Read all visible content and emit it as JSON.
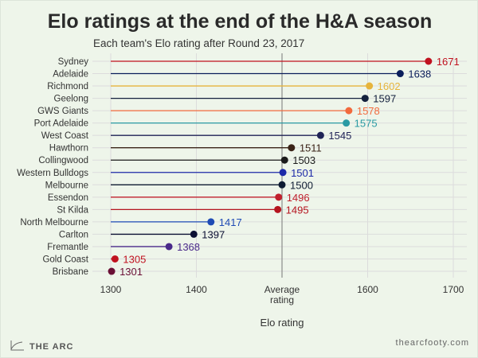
{
  "chart_data": {
    "type": "lollipop",
    "title": "Elo ratings at the end of the H&A season",
    "subtitle": "Each team's Elo rating after Round 23, 2017",
    "xlabel": "Elo rating",
    "xlim": [
      1290,
      1715
    ],
    "xticks": [
      {
        "value": 1300,
        "label": "1300"
      },
      {
        "value": 1400,
        "label": "1400"
      },
      {
        "value": 1500,
        "label": "Average rating"
      },
      {
        "value": 1600,
        "label": "1600"
      },
      {
        "value": 1700,
        "label": "1700"
      }
    ],
    "baseline": 1300,
    "reference_line": 1500,
    "grid": true,
    "teams": [
      {
        "name": "Sydney",
        "value": 1671,
        "color": "#c0111f"
      },
      {
        "name": "Adelaide",
        "value": 1638,
        "color": "#0b1e5b"
      },
      {
        "name": "Richmond",
        "value": 1602,
        "color": "#e6b43c"
      },
      {
        "name": "Geelong",
        "value": 1597,
        "color": "#14213d"
      },
      {
        "name": "GWS Giants",
        "value": 1578,
        "color": "#f26a3d"
      },
      {
        "name": "Port Adelaide",
        "value": 1575,
        "color": "#2a9aa3"
      },
      {
        "name": "West Coast",
        "value": 1545,
        "color": "#1f2356"
      },
      {
        "name": "Hawthorn",
        "value": 1511,
        "color": "#3b2418"
      },
      {
        "name": "Collingwood",
        "value": 1503,
        "color": "#1a1a1a"
      },
      {
        "name": "Western Bulldogs",
        "value": 1501,
        "color": "#1d2aa8"
      },
      {
        "name": "Melbourne",
        "value": 1500,
        "color": "#0f1c33"
      },
      {
        "name": "Essendon",
        "value": 1496,
        "color": "#c0202d"
      },
      {
        "name": "St Kilda",
        "value": 1495,
        "color": "#b5141e"
      },
      {
        "name": "North Melbourne",
        "value": 1417,
        "color": "#1f4bb5"
      },
      {
        "name": "Carlton",
        "value": 1397,
        "color": "#0c1033"
      },
      {
        "name": "Fremantle",
        "value": 1368,
        "color": "#4a2a8a"
      },
      {
        "name": "Gold Coast",
        "value": 1305,
        "color": "#c0111f"
      },
      {
        "name": "Brisbane",
        "value": 1301,
        "color": "#6a0f35"
      }
    ]
  },
  "footer": {
    "logo": "THE ARC",
    "url": "thearcfooty.com"
  }
}
